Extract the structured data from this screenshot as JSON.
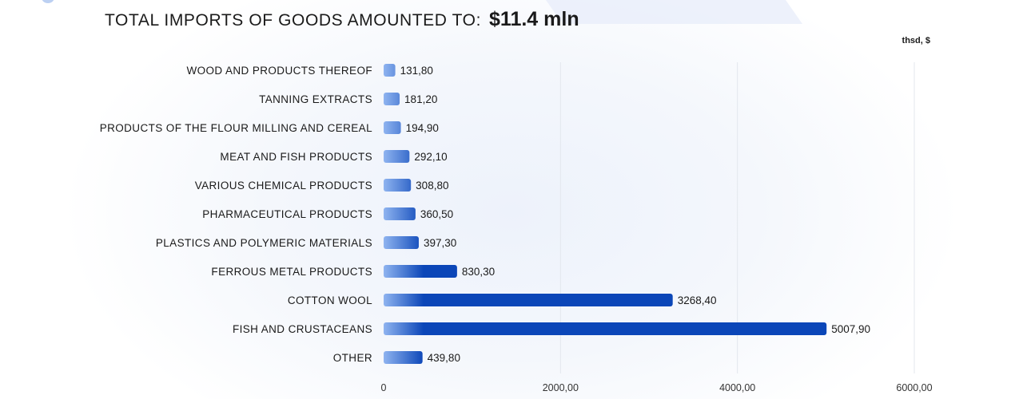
{
  "header": {
    "title": "TOTAL IMPORTS OF GOODS AMOUNTED TO:",
    "total": "$11.4 mln",
    "unit": "thsd, $"
  },
  "colors": {
    "bar_start": "#8fb4f0",
    "bar_end": "#0b46b8",
    "grid": "#e3e7ee"
  },
  "chart_data": {
    "type": "bar",
    "orientation": "horizontal",
    "title": "TOTAL IMPORTS OF GOODS AMOUNTED TO: $11.4 mln",
    "unit": "thsd, $",
    "categories": [
      "WOOD AND PRODUCTS THEREOF",
      "TANNING EXTRACTS",
      "PRODUCTS OF THE FLOUR MILLING AND CEREAL",
      "MEAT AND FISH PRODUCTS",
      "VARIOUS CHEMICAL PRODUCTS",
      "PHARMACEUTICAL PRODUCTS",
      "PLASTICS AND POLYMERIC MATERIALS",
      "FERROUS METAL PRODUCTS",
      "COTTON WOOL",
      "FISH AND CRUSTACEANS",
      "OTHER"
    ],
    "values": [
      131.8,
      181.2,
      194.9,
      292.1,
      308.8,
      360.5,
      397.3,
      830.3,
      3268.4,
      5007.9,
      439.8
    ],
    "value_labels": [
      "131,80",
      "181,20",
      "194,90",
      "292,10",
      "308,80",
      "360,50",
      "397,30",
      "830,30",
      "3268,40",
      "5007,90",
      "439,80"
    ],
    "xlim": [
      0,
      6000
    ],
    "ticks": [
      0,
      2000,
      4000,
      6000
    ],
    "tick_labels": [
      "0",
      "2000,00",
      "4000,00",
      "6000,00"
    ],
    "grid": true,
    "legend": "none"
  }
}
